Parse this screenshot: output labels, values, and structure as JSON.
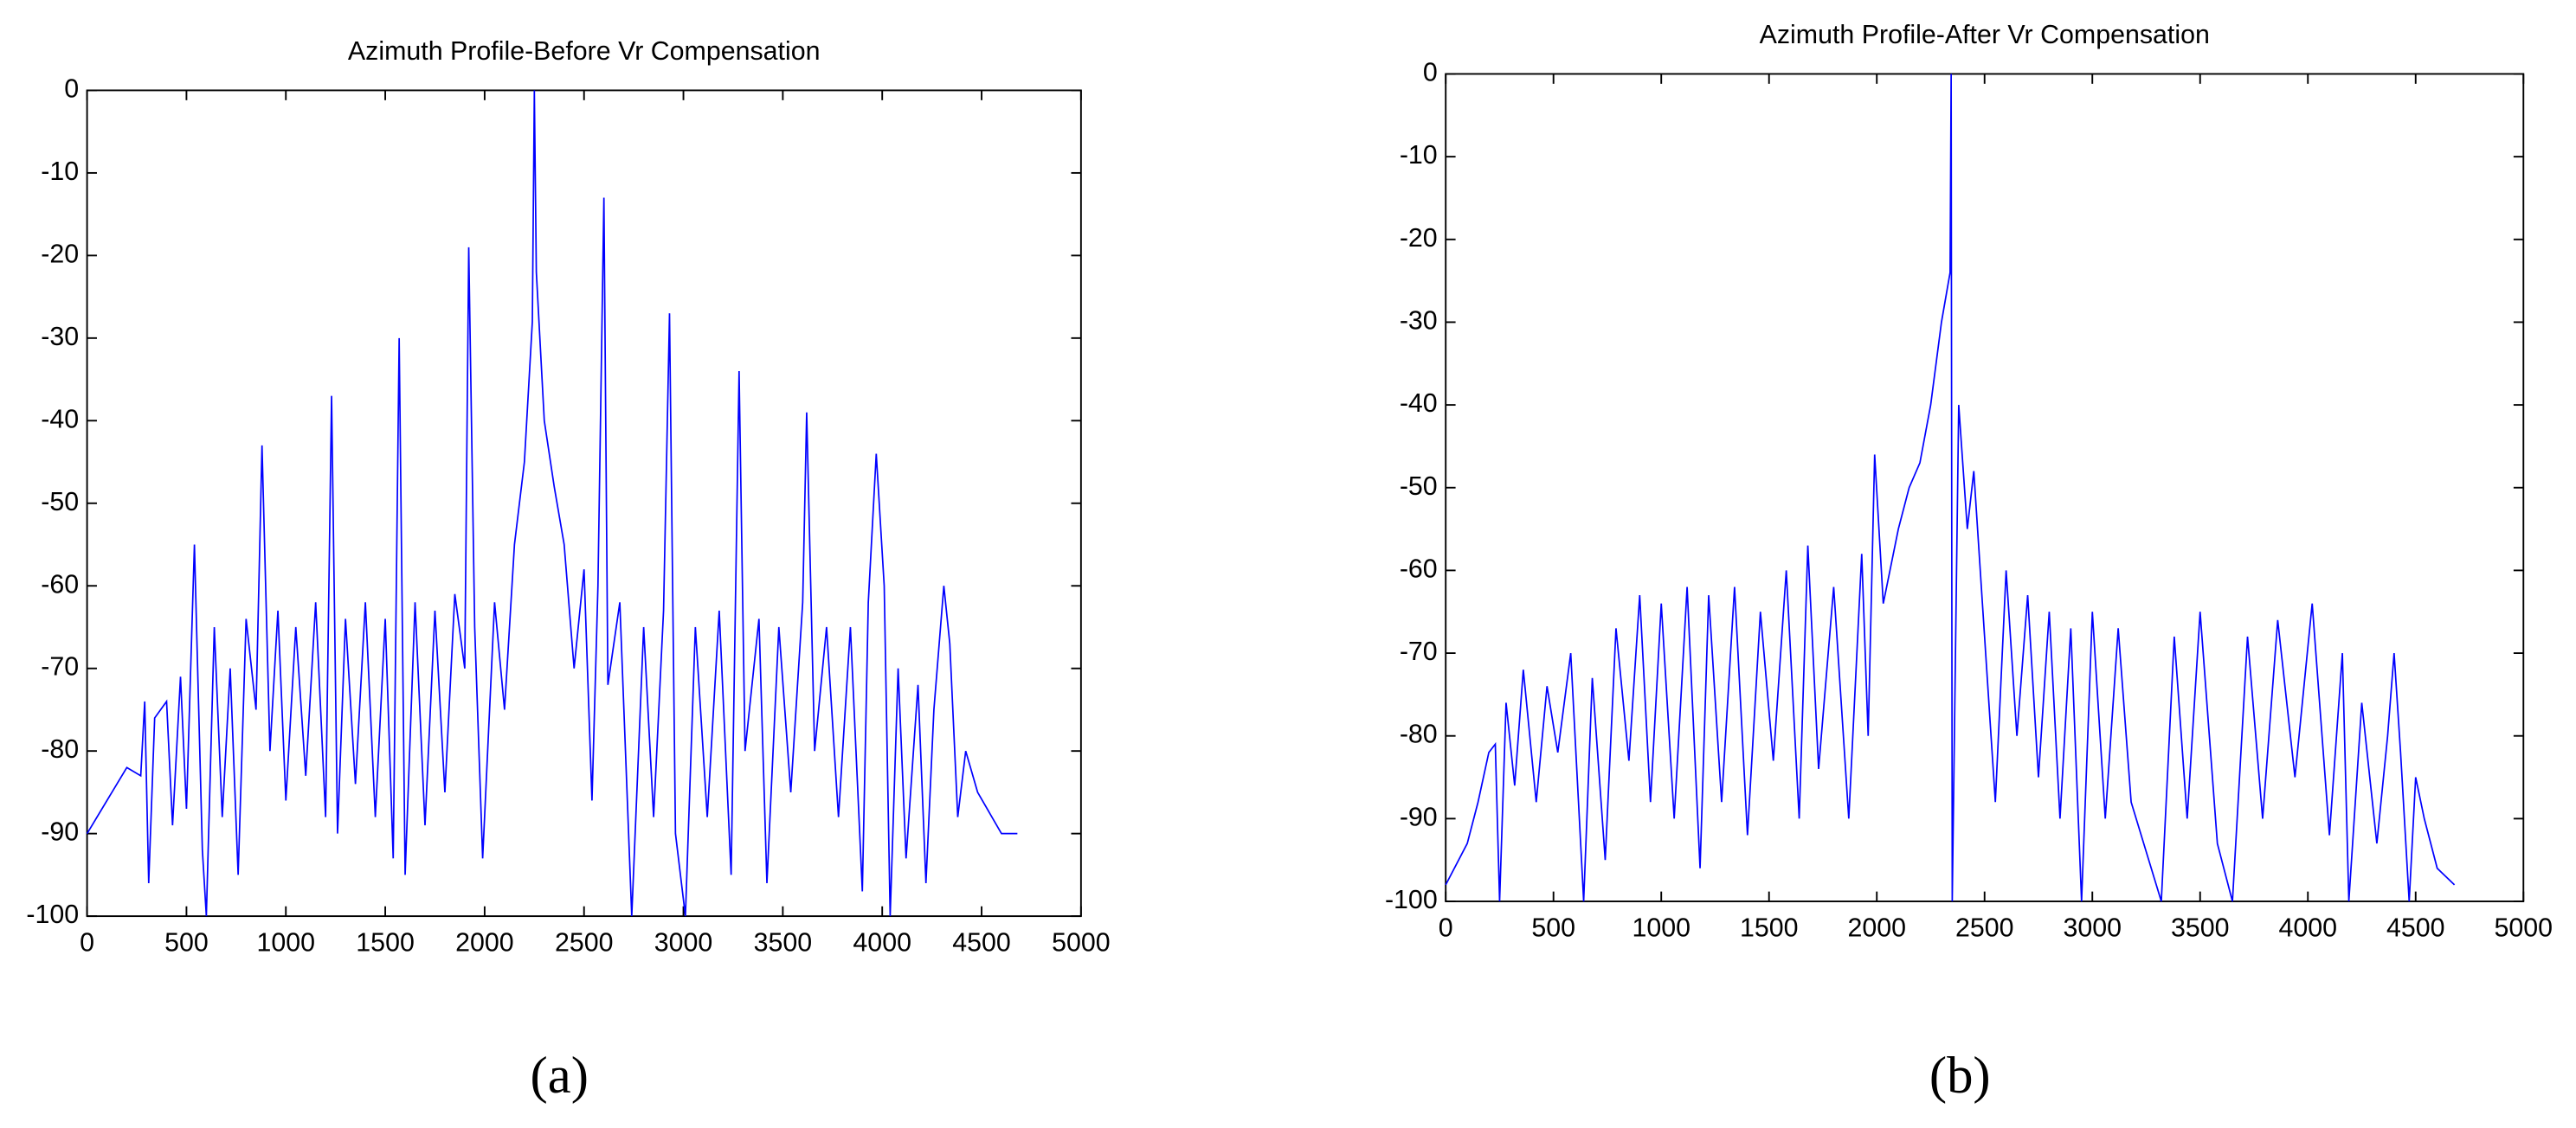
{
  "chart_data": [
    {
      "type": "line",
      "title": "Azimuth Profile-Before Vr Compensation",
      "caption": "(a)",
      "xlim": [
        0,
        5000
      ],
      "ylim": [
        -100,
        0
      ],
      "xticks": [
        0,
        500,
        1000,
        1500,
        2000,
        2500,
        3000,
        3500,
        4000,
        4500,
        5000
      ],
      "yticks": [
        -100,
        -90,
        -80,
        -70,
        -60,
        -50,
        -40,
        -30,
        -20,
        -10,
        0
      ],
      "series": [
        {
          "color": "#0000ff",
          "x": [
            0,
            200,
            270,
            290,
            310,
            340,
            400,
            430,
            470,
            500,
            540,
            580,
            600,
            640,
            680,
            720,
            760,
            800,
            850,
            880,
            920,
            960,
            1000,
            1050,
            1100,
            1150,
            1200,
            1230,
            1260,
            1300,
            1350,
            1400,
            1450,
            1500,
            1540,
            1570,
            1600,
            1650,
            1700,
            1750,
            1800,
            1850,
            1900,
            1920,
            1950,
            1990,
            2050,
            2100,
            2150,
            2200,
            2240,
            2250,
            2260,
            2300,
            2350,
            2400,
            2450,
            2500,
            2540,
            2570,
            2600,
            2620,
            2680,
            2740,
            2800,
            2850,
            2900,
            2930,
            2960,
            3010,
            3060,
            3120,
            3180,
            3240,
            3280,
            3310,
            3380,
            3420,
            3480,
            3540,
            3600,
            3620,
            3660,
            3720,
            3780,
            3840,
            3900,
            3930,
            3970,
            4010,
            4040,
            4080,
            4120,
            4180,
            4220,
            4260,
            4310,
            4340,
            4380,
            4420,
            4480,
            4600,
            4680
          ],
          "values": [
            -90,
            -82,
            -83,
            -74,
            -96,
            -76,
            -74,
            -89,
            -71,
            -87,
            -55,
            -92,
            -100,
            -65,
            -88,
            -70,
            -95,
            -64,
            -75,
            -43,
            -80,
            -63,
            -86,
            -65,
            -83,
            -62,
            -88,
            -37,
            -90,
            -64,
            -84,
            -62,
            -88,
            -64,
            -93,
            -30,
            -95,
            -62,
            -89,
            -63,
            -85,
            -61,
            -70,
            -19,
            -65,
            -93,
            -62,
            -75,
            -55,
            -45,
            -28,
            0,
            -22,
            -40,
            -48,
            -55,
            -70,
            -58,
            -86,
            -60,
            -13,
            -72,
            -62,
            -100,
            -65,
            -88,
            -63,
            -27,
            -90,
            -100,
            -65,
            -88,
            -63,
            -95,
            -34,
            -80,
            -64,
            -96,
            -65,
            -85,
            -62,
            -39,
            -80,
            -65,
            -88,
            -65,
            -97,
            -62,
            -44,
            -60,
            -100,
            -70,
            -93,
            -72,
            -96,
            -75,
            -60,
            -67,
            -88,
            -80,
            -85,
            -90,
            -90
          ]
        }
      ]
    },
    {
      "type": "line",
      "title": "Azimuth Profile-After Vr Compensation",
      "caption": "(b)",
      "xlim": [
        0,
        5000
      ],
      "ylim": [
        -100,
        0
      ],
      "xticks": [
        0,
        500,
        1000,
        1500,
        2000,
        2500,
        3000,
        3500,
        4000,
        4500,
        5000
      ],
      "yticks": [
        -100,
        -90,
        -80,
        -70,
        -60,
        -50,
        -40,
        -30,
        -20,
        -10,
        0
      ],
      "series": [
        {
          "color": "#0000ff",
          "x": [
            0,
            100,
            150,
            200,
            230,
            250,
            280,
            320,
            360,
            420,
            470,
            520,
            580,
            640,
            680,
            740,
            790,
            850,
            900,
            950,
            1000,
            1060,
            1120,
            1180,
            1220,
            1280,
            1340,
            1400,
            1460,
            1520,
            1580,
            1640,
            1680,
            1730,
            1800,
            1870,
            1930,
            1960,
            1990,
            2030,
            2100,
            2150,
            2200,
            2250,
            2300,
            2340,
            2345,
            2350,
            2380,
            2420,
            2450,
            2500,
            2550,
            2600,
            2650,
            2700,
            2750,
            2800,
            2850,
            2900,
            2950,
            3000,
            3060,
            3120,
            3180,
            3320,
            3380,
            3440,
            3500,
            3580,
            3650,
            3720,
            3790,
            3860,
            3940,
            4020,
            4100,
            4160,
            4190,
            4250,
            4320,
            4370,
            4400,
            4430,
            4470,
            4500,
            4540,
            4600,
            4680
          ],
          "values": [
            -98,
            -93,
            -88,
            -82,
            -81,
            -100,
            -76,
            -86,
            -72,
            -88,
            -74,
            -82,
            -70,
            -100,
            -73,
            -95,
            -67,
            -83,
            -63,
            -88,
            -64,
            -90,
            -62,
            -96,
            -63,
            -88,
            -62,
            -92,
            -65,
            -83,
            -60,
            -90,
            -57,
            -84,
            -62,
            -90,
            -58,
            -80,
            -46,
            -64,
            -55,
            -50,
            -47,
            -40,
            -30,
            -24,
            0,
            -100,
            -40,
            -55,
            -48,
            -68,
            -88,
            -60,
            -80,
            -63,
            -85,
            -65,
            -90,
            -67,
            -100,
            -65,
            -90,
            -67,
            -88,
            -100,
            -68,
            -90,
            -65,
            -93,
            -100,
            -68,
            -90,
            -66,
            -85,
            -64,
            -92,
            -70,
            -100,
            -76,
            -93,
            -80,
            -70,
            -82,
            -100,
            -85,
            -90,
            -96,
            -98
          ]
        }
      ]
    }
  ]
}
